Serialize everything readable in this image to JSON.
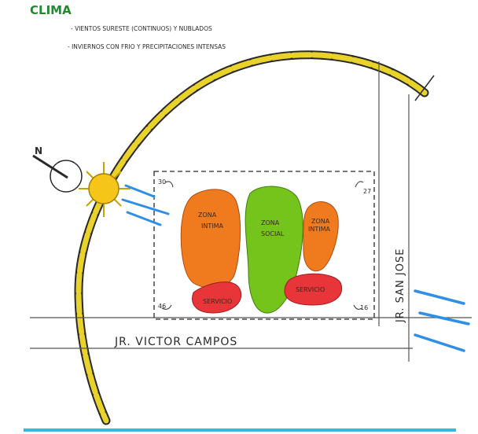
{
  "title": "CLIMA",
  "notes": [
    "- VIENTOS SURESTE (CONTINUOS) Y NUBLADOS",
    "- INVIERNOS CON FRIO Y PRECIPITACIONES INTENSAS"
  ],
  "north_label": "N",
  "streets": {
    "horizontal": "JR. VICTOR CAMPOS",
    "vertical": "JR. SAN JOSE"
  },
  "zones": [
    {
      "label_line1": "ZONA",
      "label_line2": "INTIMA",
      "color": "#f07a1e"
    },
    {
      "label_line1": "ZONA",
      "label_line2": "SOCIAL",
      "color": "#74c41c"
    },
    {
      "label_line1": "ZONA",
      "label_line2": "INTIMA",
      "color": "#f07a1e"
    },
    {
      "label_line1": "SERVICIO",
      "label_line2": "",
      "color": "#e8353a"
    },
    {
      "label_line1": "SERVICIO",
      "label_line2": "",
      "color": "#e8353a"
    }
  ],
  "lot_corners": {
    "top_left": "30",
    "top_right": "27",
    "bottom_left": "46",
    "bottom_right": "16"
  },
  "colors": {
    "title": "#1f8a2e",
    "sun": "#f5c51a",
    "sun_path": "#e9d22a",
    "wind": "#2f8fe6",
    "ground_line": "#3ab5e6",
    "ink": "#2a2a2a"
  }
}
